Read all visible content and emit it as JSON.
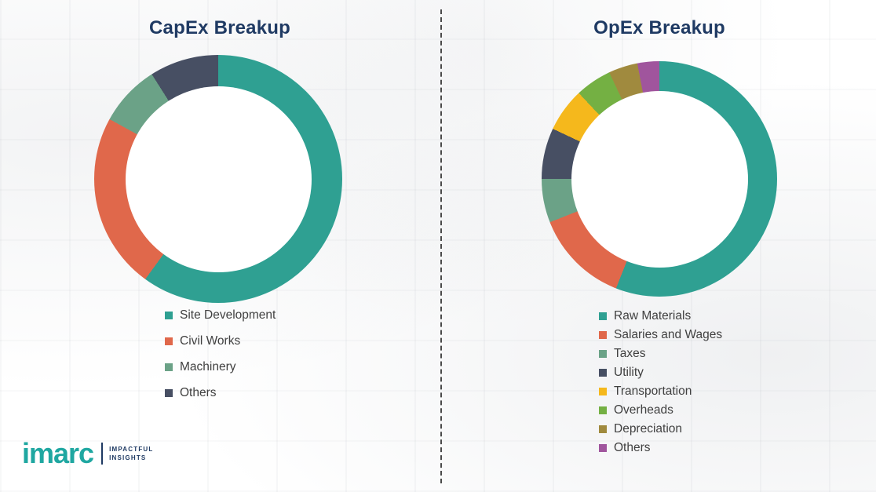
{
  "chart_data": [
    {
      "type": "pie",
      "donut": true,
      "hole_ratio": 0.75,
      "title": "CapEx Breakup",
      "legend_position": "bottom",
      "labels": [
        "Site Development",
        "Civil Works",
        "Machinery",
        "Others"
      ],
      "values": [
        60,
        23,
        8,
        9
      ],
      "colors": [
        "#2FA092",
        "#E0684B",
        "#6BA287",
        "#474F63"
      ]
    },
    {
      "type": "pie",
      "donut": true,
      "hole_ratio": 0.75,
      "title": "OpEx Breakup",
      "legend_position": "bottom",
      "labels": [
        "Raw Materials",
        "Salaries and Wages",
        "Taxes",
        "Utility",
        "Transportation",
        "Overheads",
        "Depreciation",
        "Others"
      ],
      "values": [
        56,
        13,
        6,
        7,
        6,
        5,
        4,
        3
      ],
      "colors": [
        "#2FA092",
        "#E0684B",
        "#6BA287",
        "#474F63",
        "#F5B81C",
        "#74B043",
        "#A08A3E",
        "#A0559D"
      ]
    }
  ],
  "brand": {
    "name": "imarc",
    "tagline_line1": "IMPACTFUL",
    "tagline_line2": "INSIGHTS"
  }
}
